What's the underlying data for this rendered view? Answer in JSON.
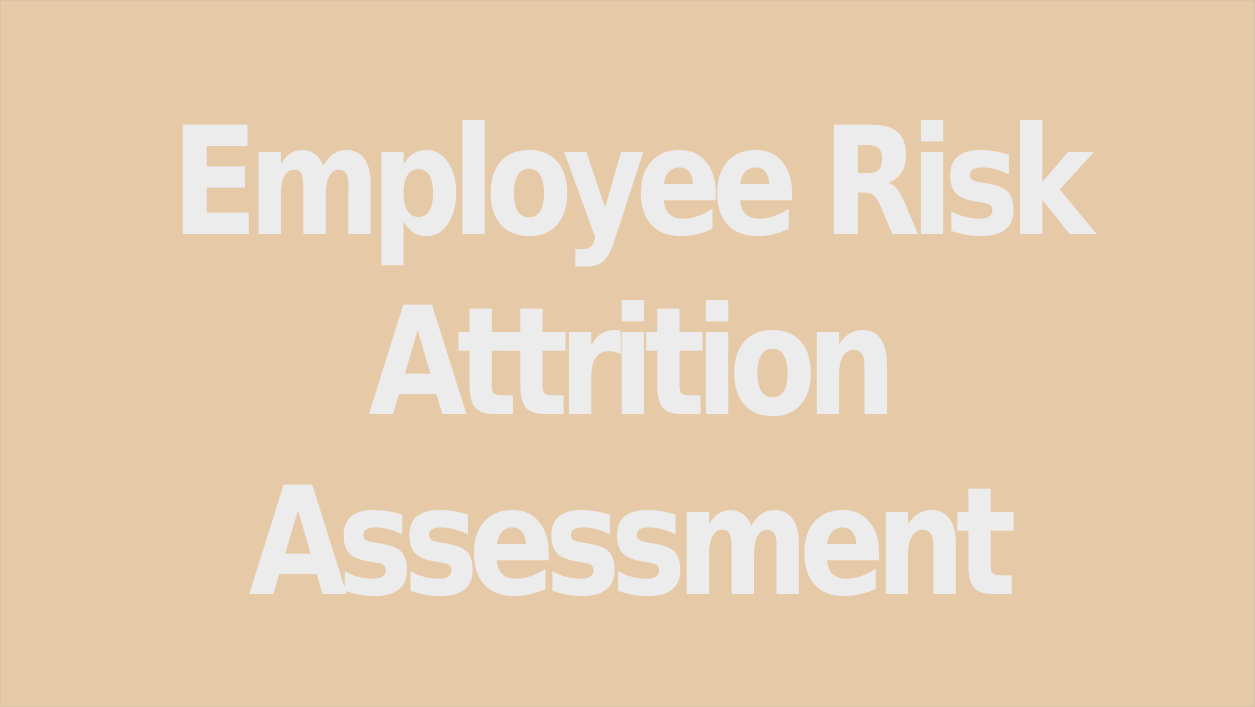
{
  "colors": {
    "background": "#e6c9a6",
    "title_text": "#ececec"
  },
  "title": {
    "line1": "Employee Risk",
    "line2": "Attrition",
    "line3": "Assessment"
  }
}
